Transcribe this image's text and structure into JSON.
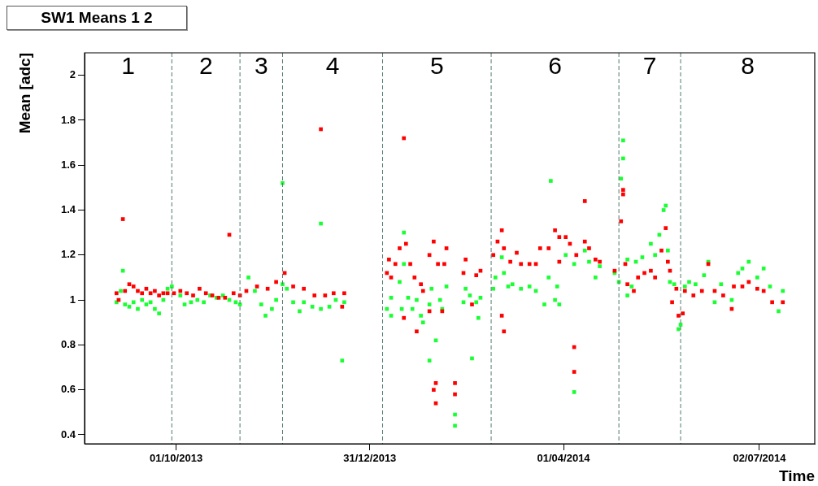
{
  "chart_data": {
    "type": "scatter",
    "title": "SW1 Means 1 2",
    "xlabel": "Time",
    "ylabel": "Mean [adc]",
    "marker": "square",
    "xlim": [
      "2013-08-19",
      "2014-07-28"
    ],
    "xticks": [
      {
        "value": "2013-10-01",
        "label": "01/10/2013"
      },
      {
        "value": "2013-12-31",
        "label": "31/12/2013"
      },
      {
        "value": "2014-04-01",
        "label": "01/04/2014"
      },
      {
        "value": "2014-07-02",
        "label": "02/07/2014"
      }
    ],
    "ylim": [
      0.36,
      2.1
    ],
    "yticks": [
      0.4,
      0.6,
      0.8,
      1,
      1.2,
      1.4,
      1.6,
      1.8,
      2
    ],
    "ref_lines": [
      {
        "axis": "x",
        "value": "2013-09-29",
        "color": "#4f7a6f",
        "line_style": "dashed"
      },
      {
        "axis": "x",
        "value": "2013-10-31",
        "color": "#4f7a6f",
        "line_style": "dashed"
      },
      {
        "axis": "x",
        "value": "2013-11-20",
        "color": "#4f7a6f",
        "line_style": "dashed"
      },
      {
        "axis": "x",
        "value": "2014-01-06",
        "color": "#4f7a6f",
        "line_style": "dashed"
      },
      {
        "axis": "x",
        "value": "2014-02-26",
        "color": "#4f7a6f",
        "line_style": "dashed"
      },
      {
        "axis": "x",
        "value": "2014-04-27",
        "color": "#4f7a6f",
        "line_style": "dashed"
      },
      {
        "axis": "x",
        "value": "2014-05-26",
        "color": "#4f7a6f",
        "line_style": "dashed"
      }
    ],
    "annotations": [
      "1",
      "2",
      "3",
      "4",
      "5",
      "6",
      "7",
      "8"
    ],
    "series": [
      {
        "color": "#ff0000",
        "x": [
          "2013-09-03",
          "2013-09-04",
          "2013-09-06",
          "2013-09-07",
          "2013-09-09",
          "2013-09-11",
          "2013-09-13",
          "2013-09-15",
          "2013-09-17",
          "2013-09-19",
          "2013-09-21",
          "2013-09-23",
          "2013-09-25",
          "2013-09-27",
          "2013-09-30",
          "2013-10-03",
          "2013-10-06",
          "2013-10-09",
          "2013-10-12",
          "2013-10-15",
          "2013-10-18",
          "2013-10-21",
          "2013-10-24",
          "2013-10-26",
          "2013-10-28",
          "2013-10-31",
          "2013-11-03",
          "2013-11-08",
          "2013-11-13",
          "2013-11-17",
          "2013-11-21",
          "2013-11-25",
          "2013-11-30",
          "2013-12-05",
          "2013-12-08",
          "2013-12-10",
          "2013-12-14",
          "2013-12-18",
          "2013-12-19",
          "2014-01-08",
          "2014-01-09",
          "2014-01-10",
          "2014-01-12",
          "2014-01-14",
          "2014-01-16",
          "2014-01-16",
          "2014-01-17",
          "2014-01-19",
          "2014-01-21",
          "2014-01-22",
          "2014-01-24",
          "2014-01-25",
          "2014-01-28",
          "2014-01-28",
          "2014-01-30",
          "2014-01-30",
          "2014-01-31",
          "2014-01-31",
          "2014-02-01",
          "2014-02-03",
          "2014-02-04",
          "2014-02-05",
          "2014-02-09",
          "2014-02-09",
          "2014-02-13",
          "2014-02-14",
          "2014-02-17",
          "2014-02-19",
          "2014-02-21",
          "2014-02-27",
          "2014-03-01",
          "2014-03-03",
          "2014-03-03",
          "2014-03-04",
          "2014-03-04",
          "2014-03-07",
          "2014-03-10",
          "2014-03-12",
          "2014-03-16",
          "2014-03-19",
          "2014-03-21",
          "2014-03-25",
          "2014-03-28",
          "2014-03-30",
          "2014-03-30",
          "2014-04-02",
          "2014-04-04",
          "2014-04-06",
          "2014-04-06",
          "2014-04-07",
          "2014-04-11",
          "2014-04-11",
          "2014-04-13",
          "2014-04-16",
          "2014-04-18",
          "2014-04-25",
          "2014-04-28",
          "2014-04-29",
          "2014-04-29",
          "2014-04-30",
          "2014-05-01",
          "2014-05-04",
          "2014-05-06",
          "2014-05-09",
          "2014-05-12",
          "2014-05-14",
          "2014-05-17",
          "2014-05-19",
          "2014-05-20",
          "2014-05-21",
          "2014-05-22",
          "2014-05-24",
          "2014-05-25",
          "2014-05-27",
          "2014-05-28",
          "2014-06-01",
          "2014-06-05",
          "2014-06-08",
          "2014-06-11",
          "2014-06-15",
          "2014-06-19",
          "2014-06-20",
          "2014-06-24",
          "2014-06-27",
          "2014-07-01",
          "2014-07-04",
          "2014-07-08",
          "2014-07-13"
        ],
        "values": [
          1.03,
          1.0,
          1.36,
          1.04,
          1.07,
          1.06,
          1.04,
          1.03,
          1.05,
          1.03,
          1.04,
          1.02,
          1.03,
          1.03,
          1.03,
          1.04,
          1.03,
          1.02,
          1.05,
          1.03,
          1.02,
          1.01,
          1.01,
          1.29,
          1.03,
          1.02,
          1.04,
          1.06,
          1.05,
          1.08,
          1.12,
          1.06,
          1.05,
          1.02,
          1.76,
          1.02,
          1.03,
          0.97,
          1.03,
          1.12,
          1.18,
          1.1,
          1.16,
          1.23,
          1.72,
          0.92,
          1.25,
          1.16,
          1.1,
          0.86,
          1.07,
          1.04,
          0.95,
          1.2,
          1.26,
          0.6,
          0.54,
          0.63,
          1.16,
          0.95,
          1.16,
          1.23,
          0.63,
          0.58,
          1.12,
          1.18,
          0.98,
          1.11,
          1.13,
          1.2,
          1.26,
          1.31,
          0.93,
          0.86,
          1.23,
          1.17,
          1.21,
          1.16,
          1.16,
          1.16,
          1.23,
          1.23,
          1.31,
          1.17,
          1.28,
          1.28,
          1.25,
          0.79,
          0.68,
          1.2,
          1.44,
          1.26,
          1.23,
          1.18,
          1.17,
          1.13,
          1.35,
          1.47,
          1.49,
          1.16,
          1.07,
          1.04,
          1.1,
          1.12,
          1.13,
          1.1,
          1.22,
          1.32,
          1.17,
          1.13,
          0.99,
          1.05,
          0.93,
          0.94,
          1.04,
          1.02,
          1.04,
          1.16,
          1.04,
          1.02,
          0.96,
          1.06,
          1.06,
          1.08,
          1.05,
          1.04,
          0.99,
          0.99
        ]
      },
      {
        "color": "#1aff33",
        "x": [
          "2013-09-03",
          "2013-09-05",
          "2013-09-06",
          "2013-09-07",
          "2013-09-09",
          "2013-09-11",
          "2013-09-13",
          "2013-09-15",
          "2013-09-17",
          "2013-09-19",
          "2013-09-21",
          "2013-09-23",
          "2013-09-25",
          "2013-09-27",
          "2013-09-29",
          "2013-10-03",
          "2013-10-05",
          "2013-10-08",
          "2013-10-11",
          "2013-10-14",
          "2013-10-17",
          "2013-10-20",
          "2013-10-23",
          "2013-10-26",
          "2013-10-29",
          "2013-10-31",
          "2013-11-04",
          "2013-11-07",
          "2013-11-10",
          "2013-11-12",
          "2013-11-15",
          "2013-11-17",
          "2013-11-20",
          "2013-11-20",
          "2013-11-22",
          "2013-11-25",
          "2013-11-28",
          "2013-11-30",
          "2013-12-04",
          "2013-12-08",
          "2013-12-08",
          "2013-12-12",
          "2013-12-15",
          "2013-12-18",
          "2013-12-19",
          "2014-01-08",
          "2014-01-10",
          "2014-01-10",
          "2014-01-14",
          "2014-01-15",
          "2014-01-16",
          "2014-01-16",
          "2014-01-18",
          "2014-01-20",
          "2014-01-22",
          "2014-01-24",
          "2014-01-25",
          "2014-01-28",
          "2014-01-28",
          "2014-01-29",
          "2014-01-31",
          "2014-02-02",
          "2014-02-03",
          "2014-02-05",
          "2014-02-09",
          "2014-02-09",
          "2014-02-13",
          "2014-02-14",
          "2014-02-16",
          "2014-02-17",
          "2014-02-19",
          "2014-02-20",
          "2014-02-21",
          "2014-02-27",
          "2014-02-28",
          "2014-03-03",
          "2014-03-04",
          "2014-03-06",
          "2014-03-08",
          "2014-03-12",
          "2014-03-16",
          "2014-03-19",
          "2014-03-23",
          "2014-03-25",
          "2014-03-26",
          "2014-03-28",
          "2014-03-29",
          "2014-03-30",
          "2014-04-02",
          "2014-04-06",
          "2014-04-06",
          "2014-04-11",
          "2014-04-13",
          "2014-04-16",
          "2014-04-18",
          "2014-04-25",
          "2014-04-27",
          "2014-04-28",
          "2014-04-29",
          "2014-04-29",
          "2014-05-01",
          "2014-05-01",
          "2014-05-03",
          "2014-05-05",
          "2014-05-08",
          "2014-05-12",
          "2014-05-14",
          "2014-05-16",
          "2014-05-18",
          "2014-05-19",
          "2014-05-20",
          "2014-05-21",
          "2014-05-23",
          "2014-05-25",
          "2014-05-26",
          "2014-05-28",
          "2014-05-30",
          "2014-06-02",
          "2014-06-06",
          "2014-06-08",
          "2014-06-11",
          "2014-06-14",
          "2014-06-19",
          "2014-06-22",
          "2014-06-24",
          "2014-06-27",
          "2014-07-01",
          "2014-07-04",
          "2014-07-07",
          "2014-07-11",
          "2014-07-13"
        ],
        "values": [
          0.99,
          1.04,
          1.13,
          0.98,
          0.97,
          0.99,
          0.96,
          1.0,
          0.98,
          0.99,
          0.96,
          0.94,
          1.0,
          1.05,
          1.06,
          1.02,
          0.98,
          0.99,
          1.0,
          0.99,
          1.02,
          1.01,
          1.02,
          1.0,
          0.99,
          0.98,
          1.1,
          1.04,
          0.98,
          0.93,
          0.96,
          1.0,
          1.07,
          1.52,
          1.05,
          0.99,
          0.95,
          0.99,
          0.97,
          0.96,
          1.34,
          0.97,
          1.0,
          0.73,
          0.99,
          0.96,
          1.01,
          0.93,
          1.08,
          0.96,
          1.16,
          1.3,
          1.01,
          0.96,
          1.0,
          0.93,
          0.9,
          0.98,
          0.73,
          1.05,
          0.82,
          1.0,
          0.96,
          1.06,
          0.49,
          0.44,
          0.99,
          1.05,
          1.02,
          0.74,
          0.99,
          0.92,
          1.01,
          1.05,
          1.1,
          1.19,
          1.12,
          1.06,
          1.07,
          1.05,
          1.06,
          1.04,
          0.98,
          1.1,
          1.53,
          1.0,
          1.06,
          0.98,
          1.2,
          0.59,
          1.16,
          1.22,
          1.17,
          1.1,
          1.15,
          1.12,
          1.08,
          1.54,
          1.71,
          1.63,
          1.18,
          1.02,
          1.06,
          1.17,
          1.19,
          1.25,
          1.2,
          1.29,
          1.4,
          1.42,
          1.22,
          1.08,
          1.07,
          0.87,
          0.89,
          1.06,
          1.08,
          1.07,
          1.11,
          1.17,
          0.99,
          1.07,
          1.0,
          1.12,
          1.14,
          1.17,
          1.1,
          1.14,
          1.06,
          0.95,
          1.04
        ]
      }
    ]
  }
}
